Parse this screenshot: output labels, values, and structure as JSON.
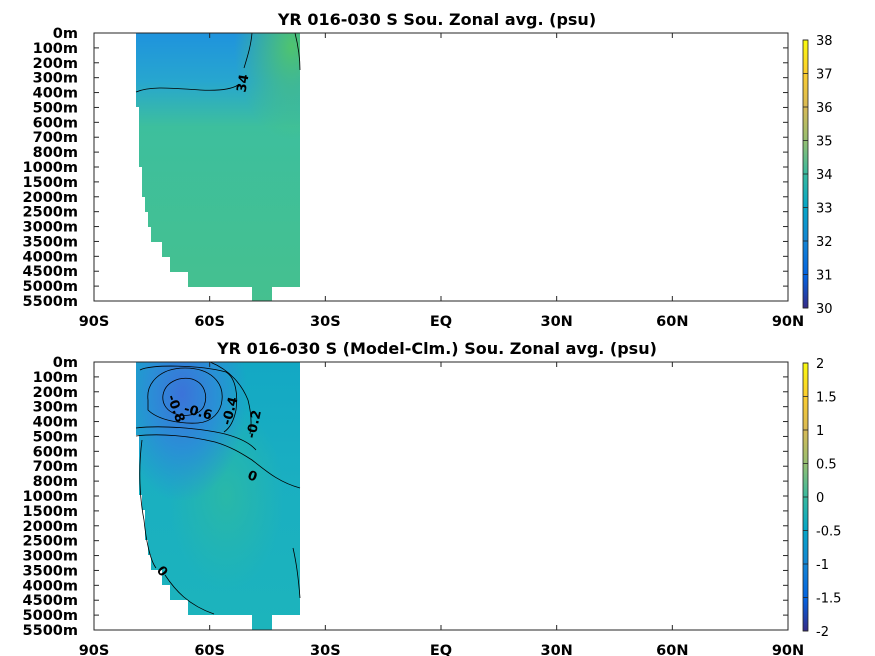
{
  "colors": {
    "axis": "#262626",
    "contour": "#000000",
    "background": "#ffffff"
  },
  "chart_data": [
    {
      "type": "heatmap",
      "title": "YR 016-030 S Sou. Zonal avg. (psu)",
      "x_ticks": [
        "90S",
        "60S",
        "30S",
        "EQ",
        "30N",
        "60N",
        "90N"
      ],
      "y_ticks": [
        "0m",
        "100m",
        "200m",
        "300m",
        "400m",
        "500m",
        "600m",
        "700m",
        "800m",
        "1000m",
        "1500m",
        "2000m",
        "2500m",
        "3000m",
        "3500m",
        "4000m",
        "4500m",
        "5000m",
        "5500m"
      ],
      "xlim": [
        -90,
        90
      ],
      "colorbar": {
        "ticks": [
          "30",
          "31",
          "32",
          "33",
          "34",
          "35",
          "36",
          "37",
          "38"
        ],
        "range": [
          30,
          38
        ],
        "colormap": "parula"
      },
      "contour_labels": [
        "34"
      ],
      "data_extent_lat": [
        -78,
        -35
      ],
      "grid": false
    },
    {
      "type": "heatmap",
      "title": "YR 016-030 S (Model-Clm.) Sou. Zonal avg. (psu)",
      "x_ticks": [
        "90S",
        "60S",
        "30S",
        "EQ",
        "30N",
        "60N",
        "90N"
      ],
      "y_ticks": [
        "0m",
        "100m",
        "200m",
        "300m",
        "400m",
        "500m",
        "600m",
        "700m",
        "800m",
        "1000m",
        "1500m",
        "2000m",
        "2500m",
        "3000m",
        "3500m",
        "4000m",
        "4500m",
        "5000m",
        "5500m"
      ],
      "xlim": [
        -90,
        90
      ],
      "colorbar": {
        "ticks": [
          "2",
          "1.5",
          "1",
          "0.5",
          "0",
          "-0.5",
          "-1",
          "-1.5",
          "-2"
        ],
        "range": [
          -2,
          2
        ],
        "colormap": "parula"
      },
      "contour_labels": [
        "-0.8",
        "-0.6",
        "-0.4",
        "-0.2",
        "0",
        "0"
      ],
      "data_extent_lat": [
        -78,
        -35
      ],
      "grid": false
    }
  ]
}
